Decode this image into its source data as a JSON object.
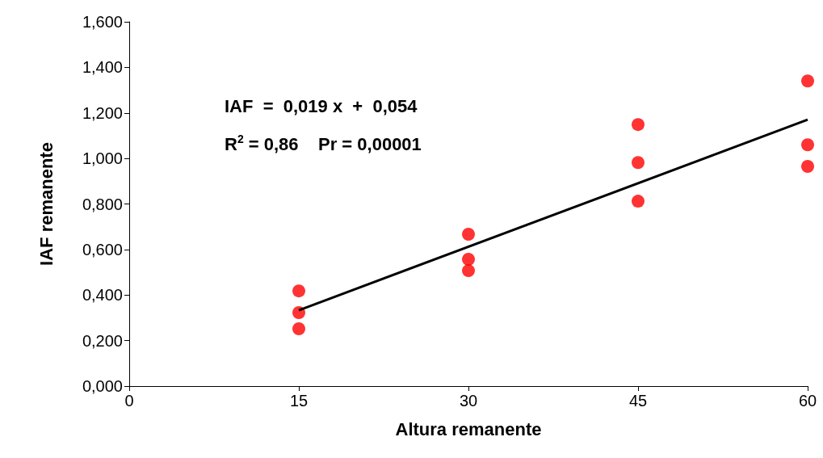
{
  "chart_data": {
    "type": "scatter",
    "xlabel": "Altura remanente",
    "ylabel": "IAF remanente",
    "xlim": [
      0,
      60
    ],
    "xticks": [
      0,
      15,
      30,
      45,
      60
    ],
    "ylim": [
      0,
      1.6
    ],
    "yticks": [
      {
        "value": 0,
        "label": "0,000"
      },
      {
        "value": 0.2,
        "label": "0,200"
      },
      {
        "value": 0.4,
        "label": "0,400"
      },
      {
        "value": 0.6,
        "label": "0,600"
      },
      {
        "value": 0.8,
        "label": "0,800"
      },
      {
        "value": 1.0,
        "label": "1,000"
      },
      {
        "value": 1.2,
        "label": "1,200"
      },
      {
        "value": 1.4,
        "label": "1,400"
      },
      {
        "value": 1.6,
        "label": "1,600"
      }
    ],
    "grid": false,
    "marker": "circle",
    "series": [
      {
        "color": "#ff0000",
        "x": [
          15,
          15,
          15,
          30,
          30,
          30,
          45,
          45,
          45,
          60,
          60,
          60
        ],
        "values": [
          0.418,
          0.323,
          0.252,
          0.667,
          0.557,
          0.507,
          1.149,
          0.982,
          0.812,
          1.34,
          1.06,
          0.965
        ]
      },
      {
        "type": "line",
        "color": "#000000",
        "marker": "none",
        "line_style": "solid",
        "x": [
          15,
          60
        ],
        "values": [
          0.333,
          1.17
        ]
      }
    ],
    "annotations": [
      "IAF  =  0,019 x  +  0,054",
      "R$^{2}$ = 0,86    Pr = 0,00001"
    ]
  }
}
